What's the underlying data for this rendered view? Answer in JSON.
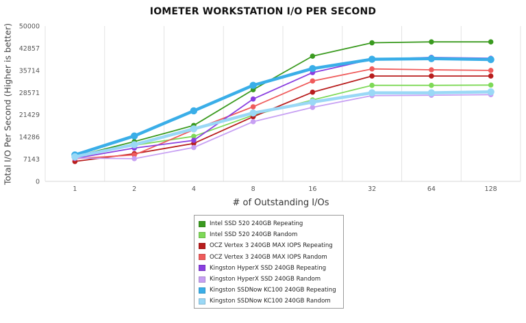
{
  "chart_data": {
    "type": "line",
    "title": "IOMETER WORKSTATION I/O PER SECOND",
    "xlabel": "# of Outstanding I/Os",
    "ylabel": "Total I/O Per Second (Higher is better)",
    "categories": [
      "1",
      "2",
      "4",
      "8",
      "16",
      "32",
      "64",
      "128"
    ],
    "yticks": [
      "0",
      "7143",
      "14286",
      "21429",
      "28571",
      "35714",
      "42857",
      "50000"
    ],
    "ylim": [
      0,
      50000
    ],
    "grid": "vertical",
    "legend_position": "bottom",
    "series": [
      {
        "name": "Intel SSD 520 240GB Repeating",
        "color": "#3a9a1f",
        "values": [
          8000,
          12800,
          18000,
          29500,
          40300,
          44600,
          44900,
          44900
        ]
      },
      {
        "name": "Intel SSD 520 240GB Random",
        "color": "#7ed957",
        "values": [
          7700,
          11600,
          14500,
          21300,
          26200,
          30900,
          30900,
          31000
        ]
      },
      {
        "name": "OCZ Vertex 3 240GB MAX IOPS Repeating",
        "color": "#b81d1d",
        "values": [
          6400,
          8900,
          12200,
          20800,
          28700,
          33900,
          33900,
          33900
        ]
      },
      {
        "name": "OCZ Vertex 3 240GB MAX IOPS Random",
        "color": "#ef5b5b",
        "values": [
          7300,
          8500,
          16600,
          24000,
          32300,
          36200,
          35900,
          35700
        ]
      },
      {
        "name": "Kingston HyperX SSD 240GB Repeating",
        "color": "#8a3fe0",
        "values": [
          7400,
          10700,
          13200,
          26500,
          35000,
          39300,
          39900,
          39600
        ]
      },
      {
        "name": "Kingston HyperX SSD 240GB Random",
        "color": "#c7a0f3",
        "values": [
          7500,
          7300,
          10900,
          19200,
          23800,
          27600,
          27700,
          27900
        ]
      },
      {
        "name": "Kingston SSDNow KC100 240GB Repeating",
        "color": "#3aaee8",
        "values": [
          8500,
          14600,
          22700,
          30900,
          36300,
          39300,
          39500,
          39200
        ]
      },
      {
        "name": "Kingston SSDNow KC100 240GB Random",
        "color": "#9ad8f6",
        "values": [
          7900,
          11800,
          16900,
          22000,
          25500,
          28500,
          28500,
          28800
        ]
      }
    ]
  }
}
